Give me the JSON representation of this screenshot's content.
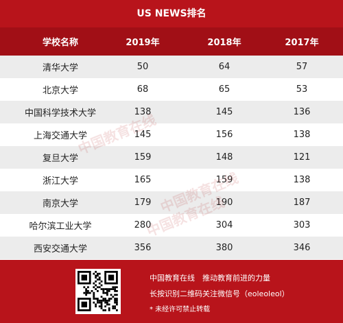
{
  "header": {
    "title": "US NEWS排名"
  },
  "table": {
    "columns": [
      "学校名称",
      "2019年",
      "2018年",
      "2017年"
    ],
    "rows": [
      [
        "清华大学",
        50,
        64,
        57
      ],
      [
        "北京大学",
        68,
        65,
        53
      ],
      [
        "中国科学技术大学",
        138,
        145,
        136
      ],
      [
        "上海交通大学",
        145,
        156,
        138
      ],
      [
        "复旦大学",
        159,
        148,
        121
      ],
      [
        "浙江大学",
        165,
        159,
        138
      ],
      [
        "南京大学",
        179,
        190,
        187
      ],
      [
        "哈尔滨工业大学",
        280,
        304,
        303
      ],
      [
        "西安交通大学",
        356,
        380,
        346
      ]
    ]
  },
  "watermark": "中国教育在线",
  "footer": {
    "lines": [
      "中国教育在线　推动教育前进的力量",
      "长按识别二维码关注微信号（eoleoleol）",
      "* 未经许可禁止转载"
    ]
  }
}
